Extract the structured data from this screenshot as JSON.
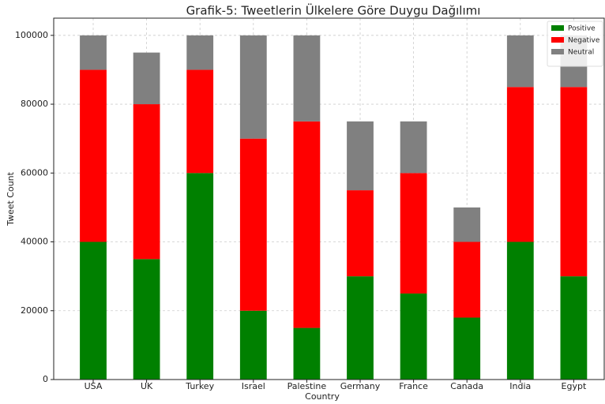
{
  "chart_data": {
    "type": "stacked_bar",
    "title": "Grafik-5: Tweetlerin Ülkelere Göre Duygu Dağılımı",
    "x_label": "Country",
    "y_label": "Tweet Count",
    "categories": [
      "USA",
      "UK",
      "Turkey",
      "Israel",
      "Palestine",
      "Germany",
      "France",
      "Canada",
      "India",
      "Egypt"
    ],
    "series": [
      {
        "name": "Positive",
        "color": "#008000",
        "values": [
          40000,
          35000,
          60000,
          20000,
          15000,
          30000,
          25000,
          18000,
          40000,
          30000
        ]
      },
      {
        "name": "Negative",
        "color": "#ff0000",
        "values": [
          50000,
          45000,
          30000,
          50000,
          60000,
          25000,
          35000,
          22000,
          45000,
          55000
        ]
      },
      {
        "name": "Neutral",
        "color": "#808080",
        "values": [
          10000,
          15000,
          10000,
          30000,
          25000,
          20000,
          15000,
          10000,
          15000,
          15000
        ]
      }
    ],
    "ylim": [
      0,
      105000
    ],
    "yticks": [
      0,
      20000,
      40000,
      60000,
      80000,
      100000
    ],
    "grid": true,
    "legend": "upper right"
  }
}
